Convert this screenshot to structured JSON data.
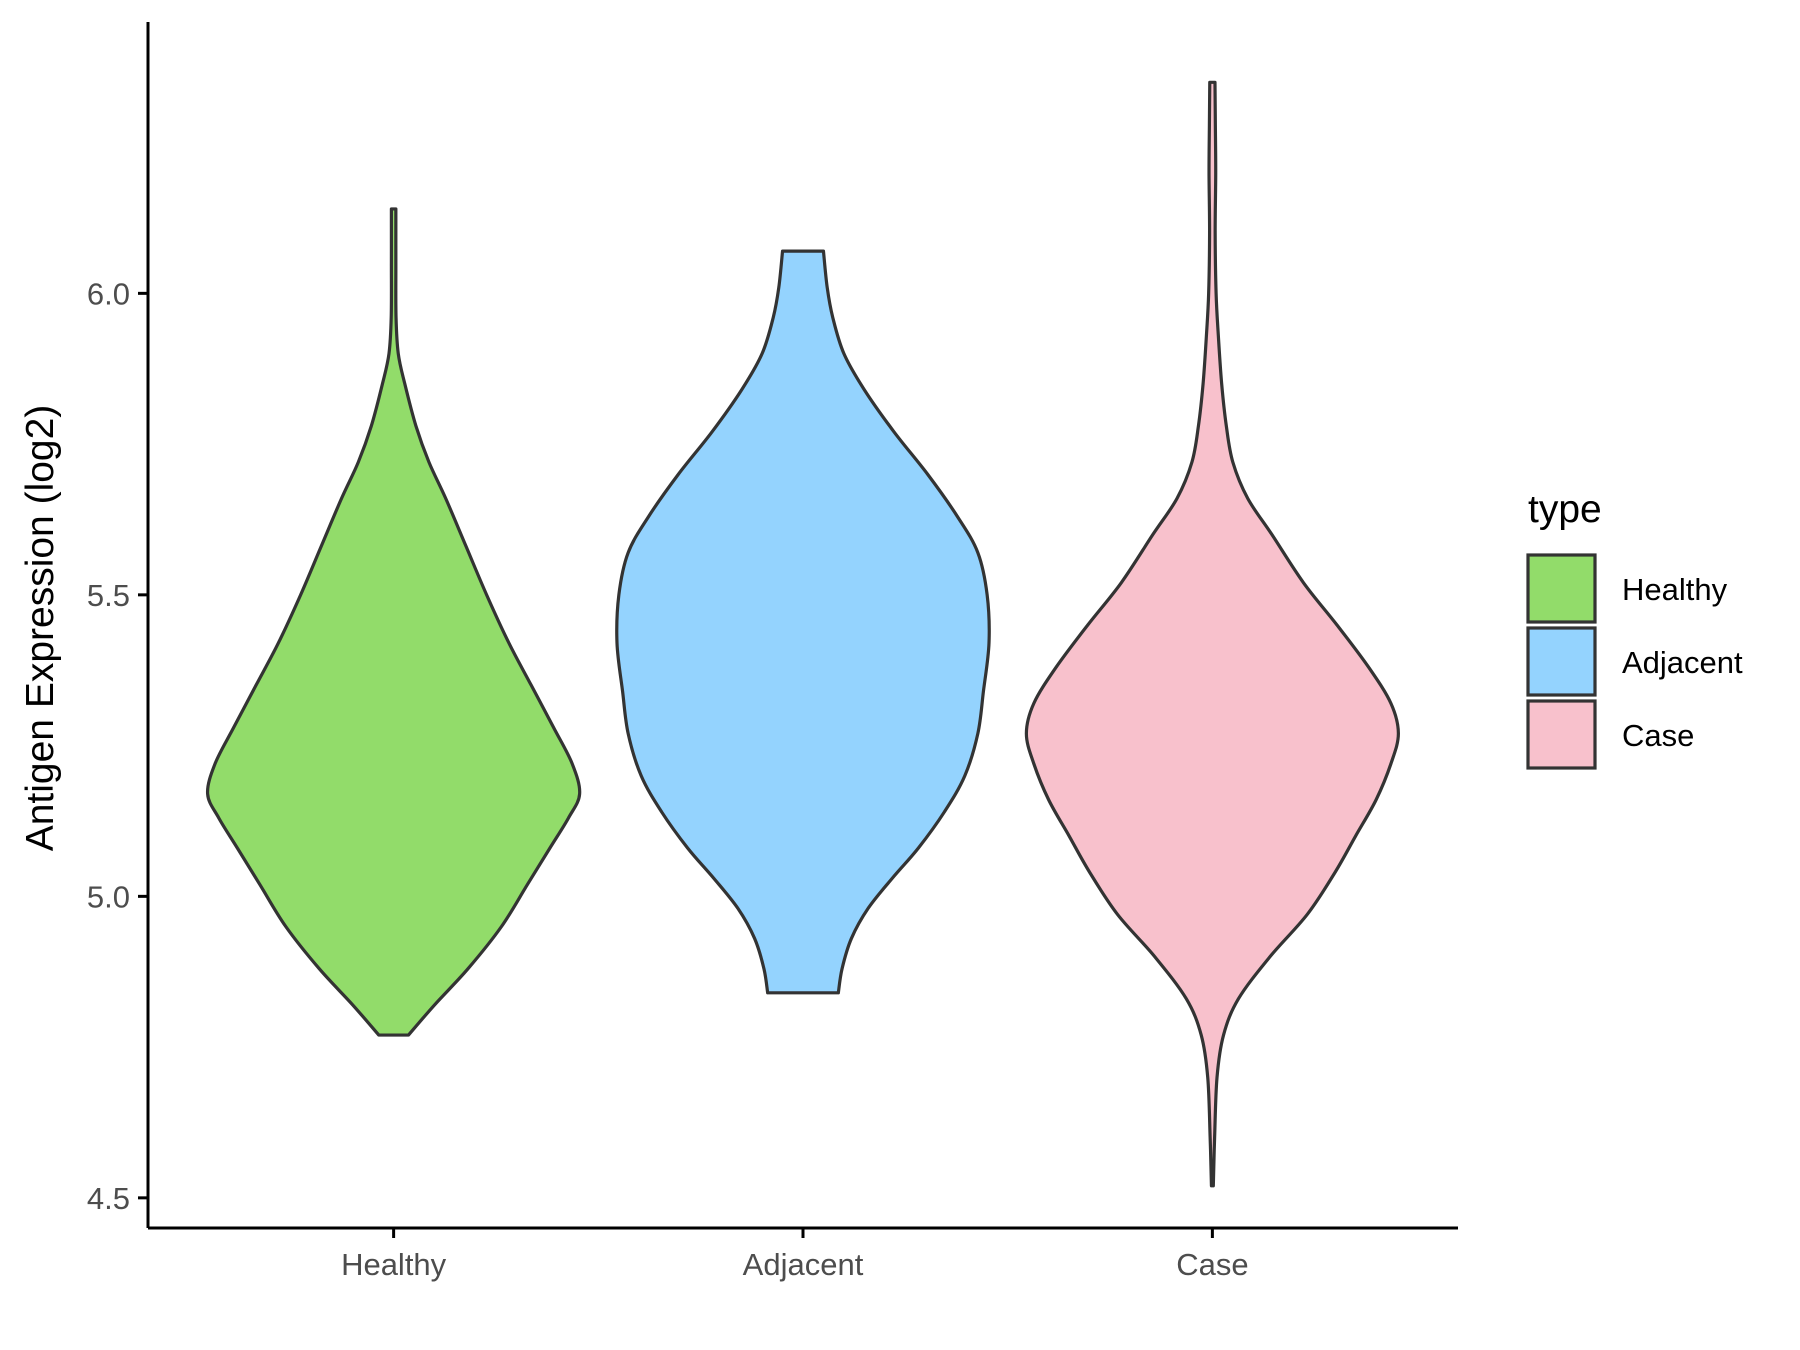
{
  "chart_data": {
    "type": "violin",
    "ylabel": "Antigen Expression (log2)",
    "xlabel": "",
    "ylim": [
      4.45,
      6.45
    ],
    "yticks": [
      4.5,
      5.0,
      5.5,
      6.0
    ],
    "ytick_labels": [
      "4.5",
      "5.0",
      "5.5",
      "6.0"
    ],
    "categories": [
      "Healthy",
      "Adjacent",
      "Case"
    ],
    "legend": {
      "title": "type",
      "placement": "right",
      "entries": [
        "Healthy",
        "Adjacent",
        "Case"
      ]
    },
    "colors": {
      "Healthy": "#92dc6a",
      "Adjacent": "#94d3fe",
      "Case": "#f8c1cc",
      "outline": "#333333"
    },
    "grid": false,
    "series": [
      {
        "category": "Healthy",
        "min": 4.77,
        "max": 6.14,
        "density_profile": [
          [
            4.77,
            0.08
          ],
          [
            4.82,
            0.22
          ],
          [
            4.88,
            0.4
          ],
          [
            4.95,
            0.58
          ],
          [
            5.02,
            0.72
          ],
          [
            5.08,
            0.84
          ],
          [
            5.13,
            0.94
          ],
          [
            5.17,
            1.0
          ],
          [
            5.22,
            0.96
          ],
          [
            5.28,
            0.86
          ],
          [
            5.35,
            0.74
          ],
          [
            5.42,
            0.62
          ],
          [
            5.5,
            0.5
          ],
          [
            5.58,
            0.39
          ],
          [
            5.66,
            0.28
          ],
          [
            5.72,
            0.19
          ],
          [
            5.78,
            0.12
          ],
          [
            5.85,
            0.06
          ],
          [
            5.9,
            0.025
          ],
          [
            5.96,
            0.013
          ],
          [
            6.05,
            0.012
          ],
          [
            6.14,
            0.012
          ]
        ]
      },
      {
        "category": "Adjacent",
        "min": 4.84,
        "max": 6.07,
        "density_profile": [
          [
            4.84,
            0.19
          ],
          [
            4.88,
            0.21
          ],
          [
            4.93,
            0.26
          ],
          [
            4.98,
            0.35
          ],
          [
            5.03,
            0.48
          ],
          [
            5.08,
            0.62
          ],
          [
            5.14,
            0.76
          ],
          [
            5.2,
            0.87
          ],
          [
            5.27,
            0.94
          ],
          [
            5.34,
            0.97
          ],
          [
            5.42,
            1.0
          ],
          [
            5.5,
            0.99
          ],
          [
            5.57,
            0.94
          ],
          [
            5.63,
            0.83
          ],
          [
            5.7,
            0.67
          ],
          [
            5.77,
            0.49
          ],
          [
            5.84,
            0.33
          ],
          [
            5.9,
            0.22
          ],
          [
            5.96,
            0.16
          ],
          [
            6.01,
            0.13
          ],
          [
            6.07,
            0.11
          ]
        ]
      },
      {
        "category": "Case",
        "min": 4.52,
        "max": 6.35,
        "density_profile": [
          [
            4.52,
            0.005
          ],
          [
            4.6,
            0.012
          ],
          [
            4.7,
            0.025
          ],
          [
            4.77,
            0.06
          ],
          [
            4.83,
            0.14
          ],
          [
            4.9,
            0.31
          ],
          [
            4.97,
            0.51
          ],
          [
            5.04,
            0.66
          ],
          [
            5.1,
            0.77
          ],
          [
            5.16,
            0.88
          ],
          [
            5.22,
            0.96
          ],
          [
            5.27,
            1.0
          ],
          [
            5.32,
            0.96
          ],
          [
            5.38,
            0.84
          ],
          [
            5.45,
            0.67
          ],
          [
            5.52,
            0.49
          ],
          [
            5.6,
            0.32
          ],
          [
            5.66,
            0.19
          ],
          [
            5.72,
            0.11
          ],
          [
            5.78,
            0.075
          ],
          [
            5.85,
            0.05
          ],
          [
            5.93,
            0.032
          ],
          [
            6.0,
            0.02
          ],
          [
            6.1,
            0.015
          ],
          [
            6.2,
            0.018
          ],
          [
            6.28,
            0.016
          ],
          [
            6.35,
            0.014
          ]
        ]
      }
    ]
  }
}
